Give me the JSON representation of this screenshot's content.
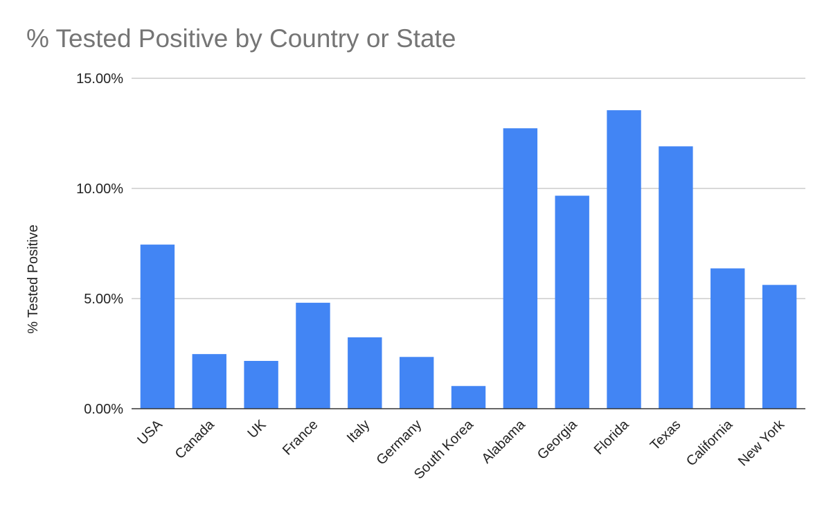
{
  "chart_data": {
    "type": "bar",
    "title": "% Tested Positive by Country or State",
    "xlabel": "",
    "ylabel": "% Tested Positive",
    "categories": [
      "USA",
      "Canada",
      "UK",
      "France",
      "Italy",
      "Germany",
      "South Korea",
      "Alabama",
      "Georgia",
      "Florida",
      "Texas",
      "California",
      "New York"
    ],
    "values": [
      7.45,
      2.48,
      2.17,
      4.81,
      3.24,
      2.35,
      1.03,
      12.73,
      9.67,
      13.55,
      11.91,
      6.37,
      5.62
    ],
    "unit": "%",
    "ylim": [
      0,
      15
    ],
    "yticks": [
      0,
      5,
      10,
      15
    ],
    "ytick_labels": [
      "0.00%",
      "5.00%",
      "10.00%",
      "15.00%"
    ],
    "grid": true,
    "legend": "none",
    "bar_color": "#4285f4"
  }
}
